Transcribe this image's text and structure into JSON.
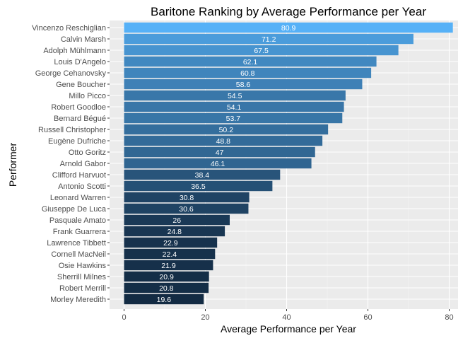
{
  "chart_data": {
    "type": "bar",
    "orientation": "horizontal",
    "title": "Baritone Ranking by Average Performance per Year",
    "xlabel": "Average Performance per Year",
    "ylabel": "Performer",
    "xlim": [
      0,
      84.5
    ],
    "x_ticks": [
      0,
      20,
      40,
      60,
      80
    ],
    "grid": true,
    "legend": "none",
    "colors": {
      "panel_background": "#ebebeb",
      "grid_major": "#ffffff",
      "bar_low": "#132b43",
      "bar_high": "#56b1f7",
      "label_text": "#ffffff"
    },
    "categories": [
      "Vincenzo Reschiglian",
      "Calvin Marsh",
      "Adolph Mühlmann",
      "Louis D'Angelo",
      "George Cehanovsky",
      "Gene Boucher",
      "Millo Picco",
      "Robert Goodloe",
      "Bernard Bégué",
      "Russell Christopher",
      "Eugène Dufriche",
      "Otto Goritz",
      "Arnold Gabor",
      "Clifford Harvuot",
      "Antonio Scotti",
      "Leonard Warren",
      "Giuseppe De Luca",
      "Pasquale Amato",
      "Frank Guarrera",
      "Lawrence Tibbett",
      "Cornell MacNeil",
      "Osie Hawkins",
      "Sherrill Milnes",
      "Robert Merrill",
      "Morley Meredith"
    ],
    "values": [
      80.9,
      71.2,
      67.5,
      62.1,
      60.8,
      58.6,
      54.5,
      54.1,
      53.7,
      50.2,
      48.8,
      47,
      46.1,
      38.4,
      36.5,
      30.8,
      30.6,
      26,
      24.8,
      22.9,
      22.4,
      21.9,
      20.9,
      20.8,
      19.6
    ],
    "data_labels": [
      "80.9",
      "71.2",
      "67.5",
      "62.1",
      "60.8",
      "58.6",
      "54.5",
      "54.1",
      "53.7",
      "50.2",
      "48.8",
      "47",
      "46.1",
      "38.4",
      "36.5",
      "30.8",
      "30.6",
      "26",
      "24.8",
      "22.9",
      "22.4",
      "21.9",
      "20.9",
      "20.8",
      "19.6"
    ]
  }
}
